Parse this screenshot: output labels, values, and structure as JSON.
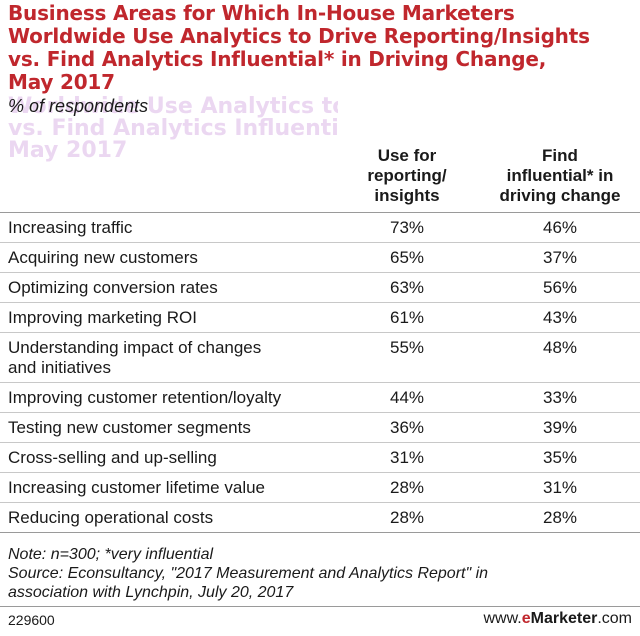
{
  "chart_data": {
    "type": "table",
    "title_lines": [
      "Business Areas for Which In-House Marketers",
      "Worldwide Use Analytics to Drive Reporting/Insights",
      "vs. Find Analytics Influential* in Driving Change,",
      "May 2017"
    ],
    "subtitle": "% of respondents",
    "columns": [
      "Use for reporting/ insights",
      "Find influential* in driving change"
    ],
    "column_lines": [
      [
        "Use for",
        "reporting/",
        "insights"
      ],
      [
        "Find",
        "influential* in",
        "driving change"
      ]
    ],
    "rows": [
      {
        "label_lines": [
          "Increasing traffic"
        ],
        "values": [
          "73%",
          "46%"
        ]
      },
      {
        "label_lines": [
          "Acquiring new customers"
        ],
        "values": [
          "65%",
          "37%"
        ]
      },
      {
        "label_lines": [
          "Optimizing conversion rates"
        ],
        "values": [
          "63%",
          "56%"
        ]
      },
      {
        "label_lines": [
          "Improving marketing ROI"
        ],
        "values": [
          "61%",
          "43%"
        ]
      },
      {
        "label_lines": [
          "Understanding impact of changes",
          "and initiatives"
        ],
        "values": [
          "55%",
          "48%"
        ]
      },
      {
        "label_lines": [
          "Improving customer retention/loyalty"
        ],
        "values": [
          "44%",
          "33%"
        ]
      },
      {
        "label_lines": [
          "Testing new customer segments"
        ],
        "values": [
          "36%",
          "39%"
        ]
      },
      {
        "label_lines": [
          "Cross-selling and up-selling"
        ],
        "values": [
          "31%",
          "35%"
        ]
      },
      {
        "label_lines": [
          "Increasing customer lifetime value"
        ],
        "values": [
          "28%",
          "31%"
        ]
      },
      {
        "label_lines": [
          "Reducing operational costs"
        ],
        "values": [
          "28%",
          "28%"
        ]
      }
    ],
    "note_lines": [
      "Note: n=300; *very influential",
      "Source: Econsultancy, \"2017 Measurement and Analytics Report\" in",
      "association with Lynchpin, July 20, 2017"
    ]
  },
  "footer": {
    "id": "229600",
    "brand_prefix": "www.",
    "brand_e": "e",
    "brand_main": "Marketer",
    "brand_suffix": ".com"
  },
  "colors": {
    "title": "#c0272d",
    "brand_accent": "#c0272d",
    "text": "#1a1a1a",
    "rule": "#9a9a9a"
  }
}
